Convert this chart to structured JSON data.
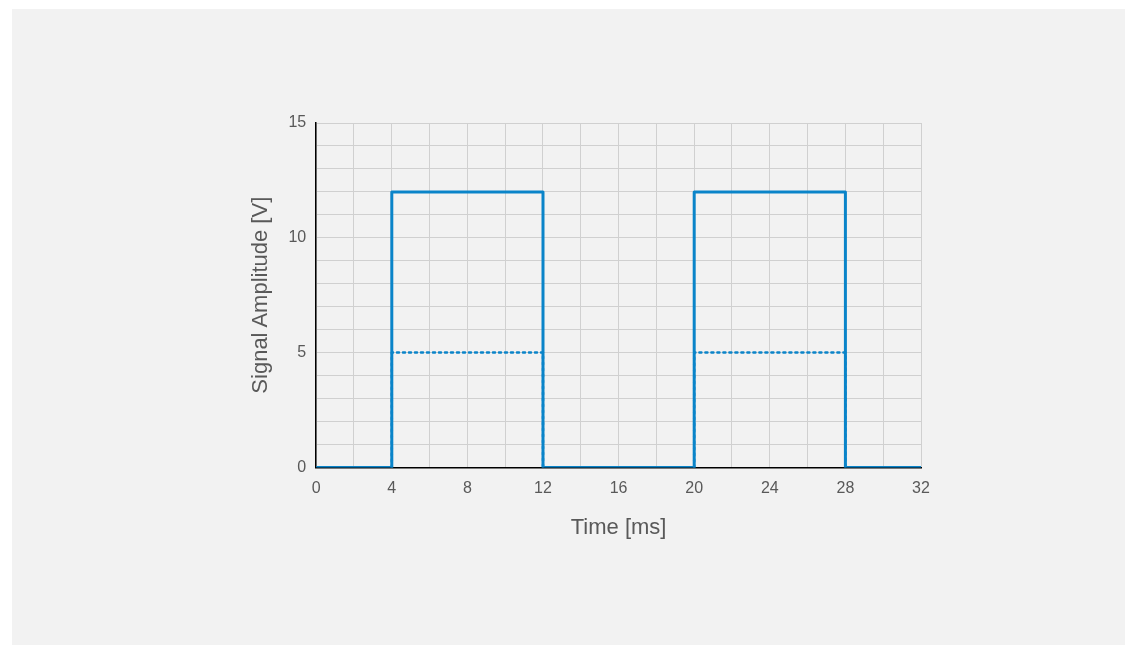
{
  "chart_data": {
    "type": "line",
    "xlabel": "Time [ms]",
    "ylabel": "Signal Amplitude [V]",
    "xlim": [
      0,
      32
    ],
    "ylim": [
      0,
      15
    ],
    "xticks": [
      0,
      {
        "value": 2,
        "label": null
      },
      4,
      {
        "value": 6,
        "label": null
      },
      8,
      {
        "value": 10,
        "label": null
      },
      12,
      {
        "value": 14,
        "label": null
      },
      16,
      {
        "value": 18,
        "label": null
      },
      20,
      {
        "value": 22,
        "label": null
      },
      24,
      {
        "value": 26,
        "label": null
      },
      28,
      {
        "value": 30,
        "label": null
      },
      32
    ],
    "yticks": [
      0,
      {
        "value": 1,
        "label": null
      },
      {
        "value": 2,
        "label": null
      },
      {
        "value": 3,
        "label": null
      },
      {
        "value": 4,
        "label": null
      },
      5,
      {
        "value": 6,
        "label": null
      },
      {
        "value": 7,
        "label": null
      },
      {
        "value": 8,
        "label": null
      },
      {
        "value": 9,
        "label": null
      },
      10,
      {
        "value": 11,
        "label": null
      },
      {
        "value": 12,
        "label": null
      },
      {
        "value": 13,
        "label": null
      },
      {
        "value": 14,
        "label": null
      },
      15
    ],
    "grid": true,
    "legend": false,
    "marker": "none",
    "series": [
      {
        "color": "#0a84c9",
        "line_style": "dotted",
        "x": [
          4,
          4,
          12,
          12,
          16,
          20,
          20,
          28,
          28
        ],
        "values": [
          0,
          5,
          5,
          0,
          null,
          0,
          5,
          5,
          0
        ]
      },
      {
        "color": "#0a84c9",
        "line_style": "solid",
        "x": [
          0,
          4,
          4,
          12,
          12,
          20,
          20,
          28,
          28,
          32
        ],
        "values": [
          0,
          0,
          12,
          12,
          0,
          0,
          12,
          12,
          0,
          0
        ]
      }
    ]
  }
}
